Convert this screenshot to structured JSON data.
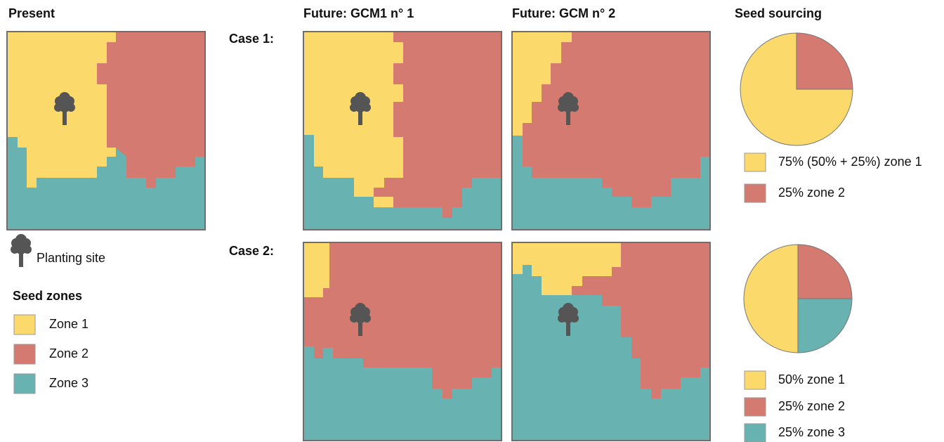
{
  "headers": {
    "present": "Present",
    "future_1": "Future: GCM1  n° 1",
    "future_2": "Future: GCM n° 2",
    "seed_sourcing": "Seed sourcing"
  },
  "cases": [
    "Case 1:",
    "Case 2:"
  ],
  "planting_site": "Planting site",
  "seed_zones": {
    "title": "Seed zones",
    "zones": [
      {
        "label": "Zone 1",
        "color": "#fbd96b"
      },
      {
        "label": "Zone 2",
        "color": "#d47a70"
      },
      {
        "label": "Zone 3",
        "color": "#68b2b1"
      }
    ]
  },
  "pies": [
    {
      "values": [
        75,
        25
      ],
      "labels": [
        "75% (50% + 25%) zone 1",
        "25% zone 2"
      ]
    },
    {
      "values": [
        50,
        25,
        25
      ],
      "labels": [
        "50% zone 1",
        "25% zone 2",
        "25% zone 3"
      ]
    }
  ]
}
